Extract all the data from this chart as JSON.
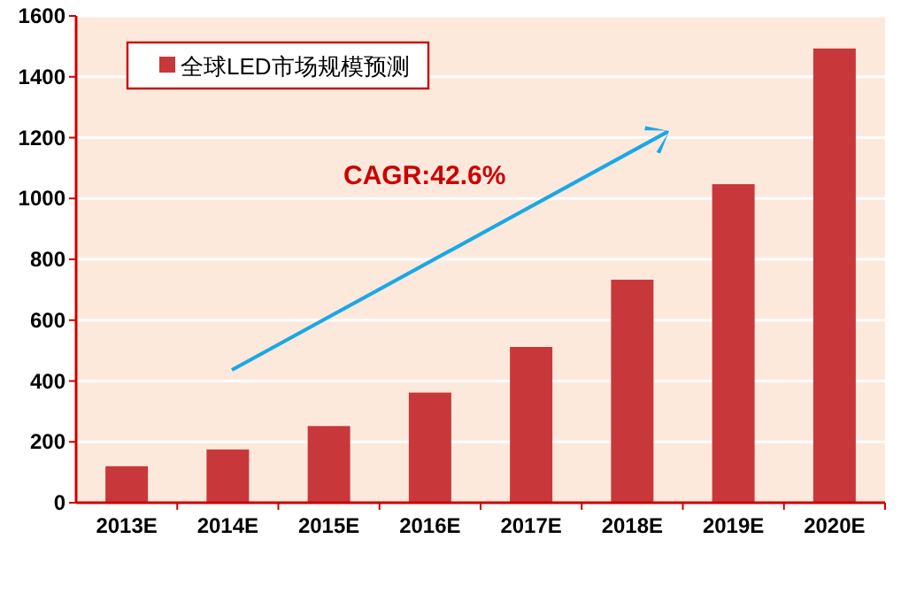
{
  "chart_data": {
    "type": "bar",
    "categories": [
      "2013E",
      "2014E",
      "2015E",
      "2016E",
      "2017E",
      "2018E",
      "2019E",
      "2020E"
    ],
    "series": [
      {
        "name": "全球LED市场规模预测",
        "color": "#c8383a",
        "values": [
          120,
          175,
          252,
          362,
          512,
          733,
          1047,
          1493
        ]
      }
    ],
    "ylim": [
      0,
      1600
    ],
    "yticks": [
      0,
      200,
      400,
      600,
      800,
      1000,
      1200,
      1400,
      1600
    ],
    "grid": "y",
    "legend": "top left",
    "annotations": [
      "CAGR:42.6%"
    ]
  }
}
